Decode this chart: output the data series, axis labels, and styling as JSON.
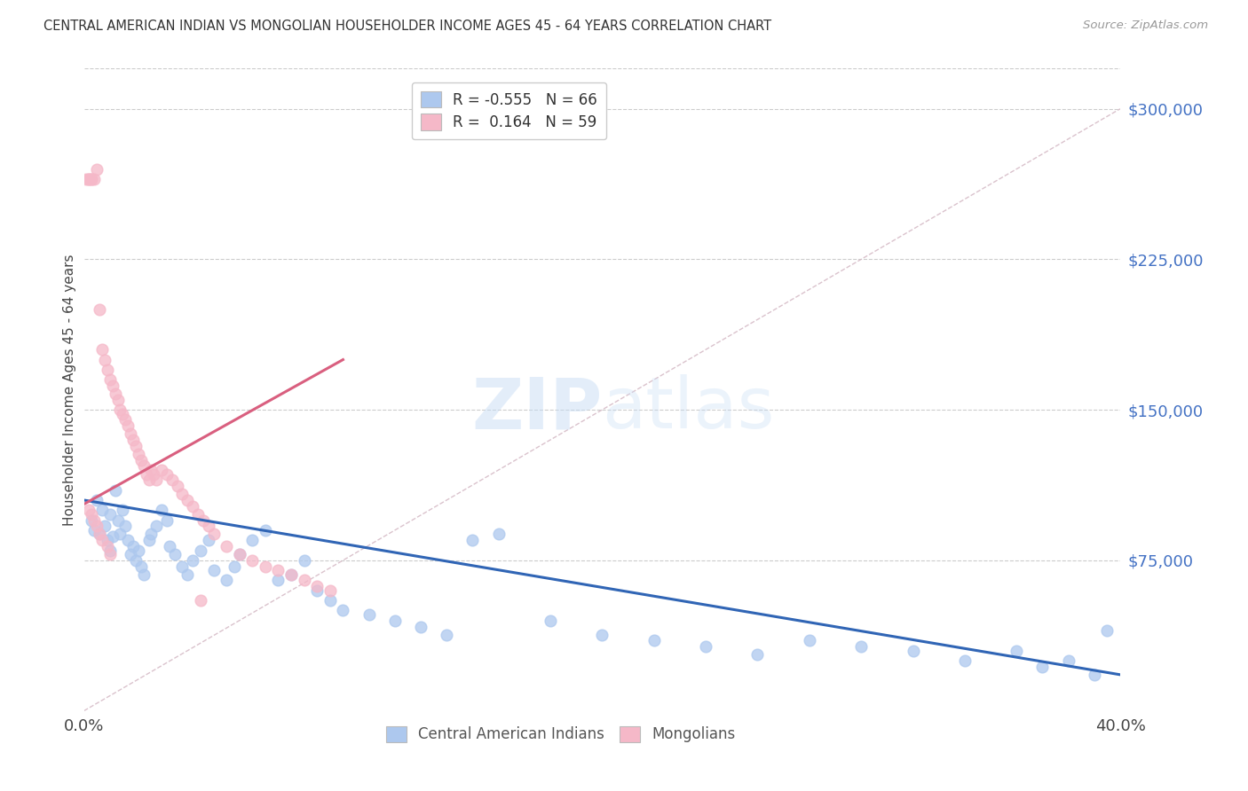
{
  "title": "CENTRAL AMERICAN INDIAN VS MONGOLIAN HOUSEHOLDER INCOME AGES 45 - 64 YEARS CORRELATION CHART",
  "source": "Source: ZipAtlas.com",
  "ylabel": "Householder Income Ages 45 - 64 years",
  "xlim": [
    0.0,
    0.4
  ],
  "ylim": [
    0,
    320000
  ],
  "xticks": [
    0.0,
    0.1,
    0.2,
    0.3,
    0.4
  ],
  "xtick_labels": [
    "0.0%",
    "",
    "",
    "",
    "40.0%"
  ],
  "ytick_labels": [
    "$75,000",
    "$150,000",
    "$225,000",
    "$300,000"
  ],
  "ytick_vals": [
    75000,
    150000,
    225000,
    300000
  ],
  "blue_R": -0.555,
  "blue_N": 66,
  "pink_R": 0.164,
  "pink_N": 59,
  "blue_color": "#adc8ee",
  "pink_color": "#f5b8c8",
  "blue_line_color": "#3065b5",
  "pink_line_color": "#d95f7f",
  "diag_line_color": "#d4b8c4",
  "watermark_zip": "ZIP",
  "watermark_atlas": "atlas",
  "background_color": "#ffffff",
  "blue_scatter_x": [
    0.003,
    0.004,
    0.005,
    0.006,
    0.007,
    0.008,
    0.009,
    0.01,
    0.01,
    0.011,
    0.012,
    0.013,
    0.014,
    0.015,
    0.016,
    0.017,
    0.018,
    0.019,
    0.02,
    0.021,
    0.022,
    0.023,
    0.025,
    0.026,
    0.028,
    0.03,
    0.032,
    0.033,
    0.035,
    0.038,
    0.04,
    0.042,
    0.045,
    0.048,
    0.05,
    0.055,
    0.058,
    0.06,
    0.065,
    0.07,
    0.075,
    0.08,
    0.085,
    0.09,
    0.095,
    0.1,
    0.11,
    0.12,
    0.13,
    0.14,
    0.15,
    0.16,
    0.18,
    0.2,
    0.22,
    0.24,
    0.26,
    0.28,
    0.3,
    0.32,
    0.34,
    0.36,
    0.37,
    0.38,
    0.39,
    0.395
  ],
  "blue_scatter_y": [
    95000,
    90000,
    105000,
    88000,
    100000,
    92000,
    85000,
    98000,
    80000,
    87000,
    110000,
    95000,
    88000,
    100000,
    92000,
    85000,
    78000,
    82000,
    75000,
    80000,
    72000,
    68000,
    85000,
    88000,
    92000,
    100000,
    95000,
    82000,
    78000,
    72000,
    68000,
    75000,
    80000,
    85000,
    70000,
    65000,
    72000,
    78000,
    85000,
    90000,
    65000,
    68000,
    75000,
    60000,
    55000,
    50000,
    48000,
    45000,
    42000,
    38000,
    85000,
    88000,
    45000,
    38000,
    35000,
    32000,
    28000,
    35000,
    32000,
    30000,
    25000,
    30000,
    22000,
    25000,
    18000,
    40000
  ],
  "pink_scatter_x": [
    0.001,
    0.002,
    0.002,
    0.003,
    0.003,
    0.004,
    0.005,
    0.006,
    0.007,
    0.008,
    0.009,
    0.01,
    0.011,
    0.012,
    0.013,
    0.014,
    0.015,
    0.016,
    0.017,
    0.018,
    0.019,
    0.02,
    0.021,
    0.022,
    0.023,
    0.024,
    0.025,
    0.026,
    0.027,
    0.028,
    0.03,
    0.032,
    0.034,
    0.036,
    0.038,
    0.04,
    0.042,
    0.044,
    0.046,
    0.048,
    0.05,
    0.055,
    0.06,
    0.065,
    0.07,
    0.075,
    0.08,
    0.085,
    0.09,
    0.095,
    0.002,
    0.003,
    0.004,
    0.005,
    0.006,
    0.007,
    0.009,
    0.01,
    0.045
  ],
  "pink_scatter_y": [
    265000,
    265000,
    265000,
    265000,
    265000,
    265000,
    270000,
    200000,
    180000,
    175000,
    170000,
    165000,
    162000,
    158000,
    155000,
    150000,
    148000,
    145000,
    142000,
    138000,
    135000,
    132000,
    128000,
    125000,
    122000,
    118000,
    115000,
    120000,
    118000,
    115000,
    120000,
    118000,
    115000,
    112000,
    108000,
    105000,
    102000,
    98000,
    95000,
    92000,
    88000,
    82000,
    78000,
    75000,
    72000,
    70000,
    68000,
    65000,
    62000,
    60000,
    100000,
    98000,
    95000,
    92000,
    88000,
    85000,
    82000,
    78000,
    55000
  ],
  "blue_trend_x": [
    0.0,
    0.4
  ],
  "blue_trend_y": [
    105000,
    18000
  ],
  "pink_trend_x": [
    0.0,
    0.1
  ],
  "pink_trend_y": [
    103000,
    175000
  ]
}
